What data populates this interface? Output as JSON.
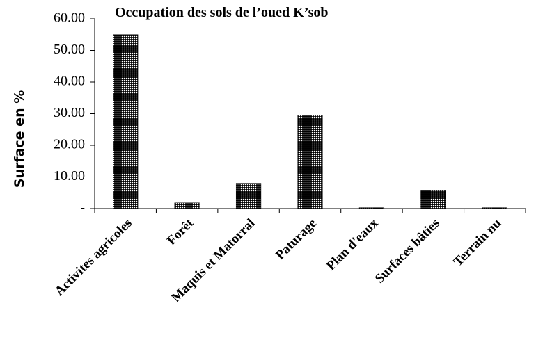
{
  "chart_data": {
    "type": "bar",
    "title": "Occupation des sols de l’oued K’sob",
    "y_label": "Surface en %",
    "categories": [
      "Activites agricoles",
      "Forêt",
      "Maquis et Matorral",
      "Paturage",
      "Plan d'eaux",
      "Surfaces bâties",
      "Terrain nu"
    ],
    "values": [
      55,
      1.8,
      8,
      29.5,
      0.3,
      5.7,
      0.3
    ],
    "color": "#000000",
    "ylim": [
      0,
      60
    ],
    "yticks": [
      {
        "value": 0,
        "label": "-"
      },
      {
        "value": 10,
        "label": "10.00"
      },
      {
        "value": 20,
        "label": "20.00"
      },
      {
        "value": 30,
        "label": "30.00"
      },
      {
        "value": 40,
        "label": "40.00"
      },
      {
        "value": 50,
        "label": "50.00"
      },
      {
        "value": 60,
        "label": "60.00"
      }
    ],
    "grid": false
  }
}
